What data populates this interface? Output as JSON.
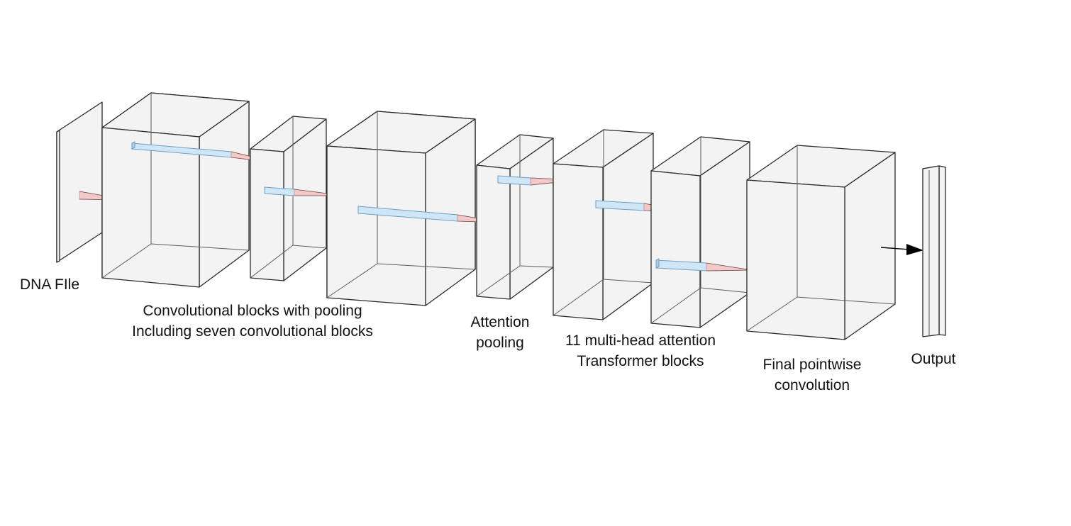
{
  "labels": {
    "dna_file": "DNA FIle",
    "conv_line1": "Convolutional blocks with pooling",
    "conv_line2": "Including seven convolutional blocks",
    "attn_pool_line1": "Attention",
    "attn_pool_line2": "pooling",
    "transformer_line1": "11 multi-head attention",
    "transformer_line2": "Transformer blocks",
    "final_conv_line1": "Final pointwise",
    "final_conv_line2": "convolution",
    "output": "Output"
  },
  "colors": {
    "face": "#f3f3f3",
    "edge": "#2a2a2a",
    "kernel": "#cfe6f6",
    "receptive_field": "#f2c7c7",
    "arrow": "#000000"
  }
}
